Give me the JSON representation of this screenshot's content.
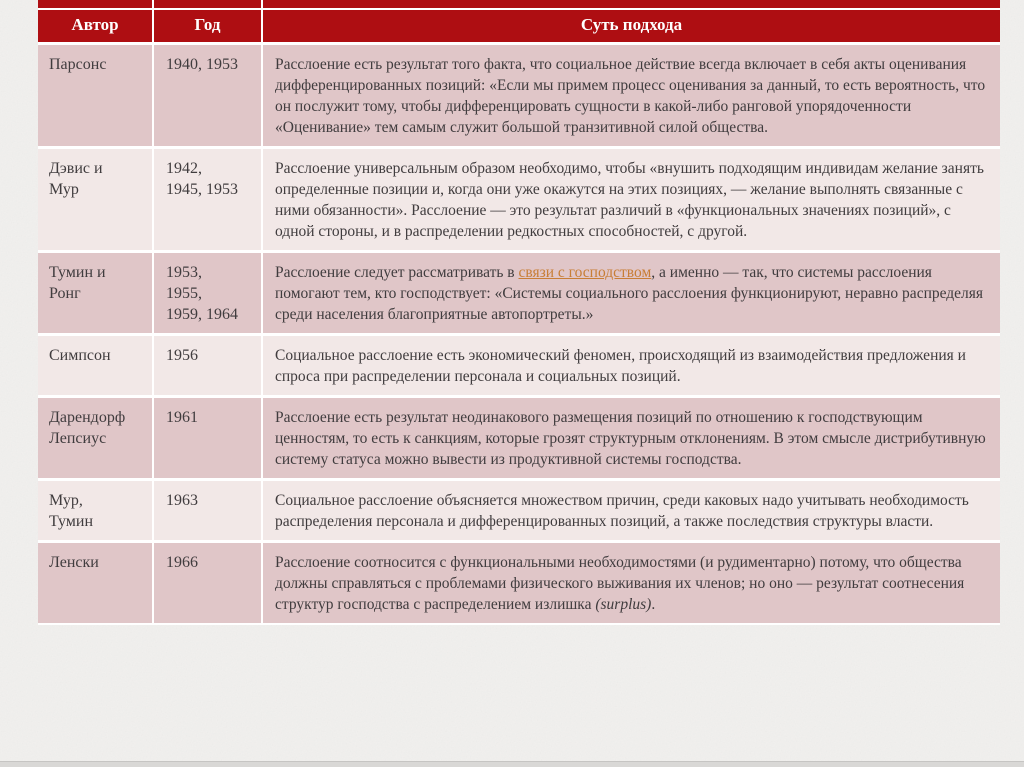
{
  "colors": {
    "header_bg": "#ae0e12",
    "header_text": "#ffffff",
    "row_odd": "#e0c6c8",
    "row_even": "#f2e8e7",
    "text": "#403c3e",
    "link": "#c87e36",
    "page_bg": "#f1f0ee",
    "cell_border": "#ffffff"
  },
  "table": {
    "headers": [
      {
        "label": "Автор"
      },
      {
        "label": "Год"
      },
      {
        "label": "Суть подхода"
      }
    ],
    "rows": [
      {
        "author": "Парсонс",
        "year": "1940, 1953",
        "segments": [
          {
            "s": "normal",
            "t": "Расслоение есть результат того факта, что социальное действие всегда включает в себя акты оценивания дифференцированных позиций: «Если мы примем процесс оценивания за данный, то есть вероятность, что он послужит тому, чтобы дифференцировать сущности в какой-либо ранговой упорядоченности «Оценивание» тем самым служит большой транзитивной силой общества."
          }
        ]
      },
      {
        "author": "Дэвис и\nМур",
        "year": "1942,\n1945, 1953",
        "segments": [
          {
            "s": "normal",
            "t": "Расслоение универсальным образом необходимо, чтобы «внушить подходящим индивидам желание занять определенные позиции и, когда они уже окажутся на этих позициях, — желание выполнять связанные с ними обязанности». Расслоение — это результат различий в «функциональных значениях позиций», с одной стороны, и в распределении редкостных способностей, с другой."
          }
        ]
      },
      {
        "author": "Тумин и\nРонг",
        "year": "1953,\n1955,\n1959, 1964",
        "segments": [
          {
            "s": "normal",
            "t": "Расслоение следует рассматривать в "
          },
          {
            "s": "link",
            "t": "связи с господством"
          },
          {
            "s": "normal",
            "t": ", а именно — так, что системы расслоения помогают тем, кто господствует: «Системы социального расслоения функционируют, неравно распределяя среди населения благоприятные автопортреты.»"
          }
        ]
      },
      {
        "author": "Симпсон",
        "year": "1956",
        "segments": [
          {
            "s": "normal",
            "t": "Социальное расслоение есть экономический феномен, происходящий из взаимодействия предложения и спроса при распределении персонала и социальных позиций."
          }
        ]
      },
      {
        "author": "Дарендорф\nЛепсиус",
        "year": "1961",
        "segments": [
          {
            "s": "normal",
            "t": "Расслоение есть результат неодинакового размещения позиций по отношению к господствующим ценностям, то есть к санкциям, которые грозят структурным отклонениям. В этом смысле дистрибутивную систему статуса можно вывести из продуктивной системы господства."
          }
        ]
      },
      {
        "author": "Мур,\nТумин",
        "year": "1963",
        "segments": [
          {
            "s": "normal",
            "t": "Социальное расслоение объясняется множеством причин, среди каковых надо учитывать необходимость распределения персонала и дифференцированных позиций, а также последствия структуры власти."
          }
        ]
      },
      {
        "author": "Ленски",
        "year": "1966",
        "segments": [
          {
            "s": "normal",
            "t": "Расслоение соотносится с функциональными необходимостями (и рудиментарно) потому, что общества должны справляться с проблемами физического выживания их членов; но оно — результат соотнесения структур господства с распределением излишка "
          },
          {
            "s": "italic",
            "t": "(surplus)"
          },
          {
            "s": "normal",
            "t": "."
          }
        ]
      }
    ]
  }
}
